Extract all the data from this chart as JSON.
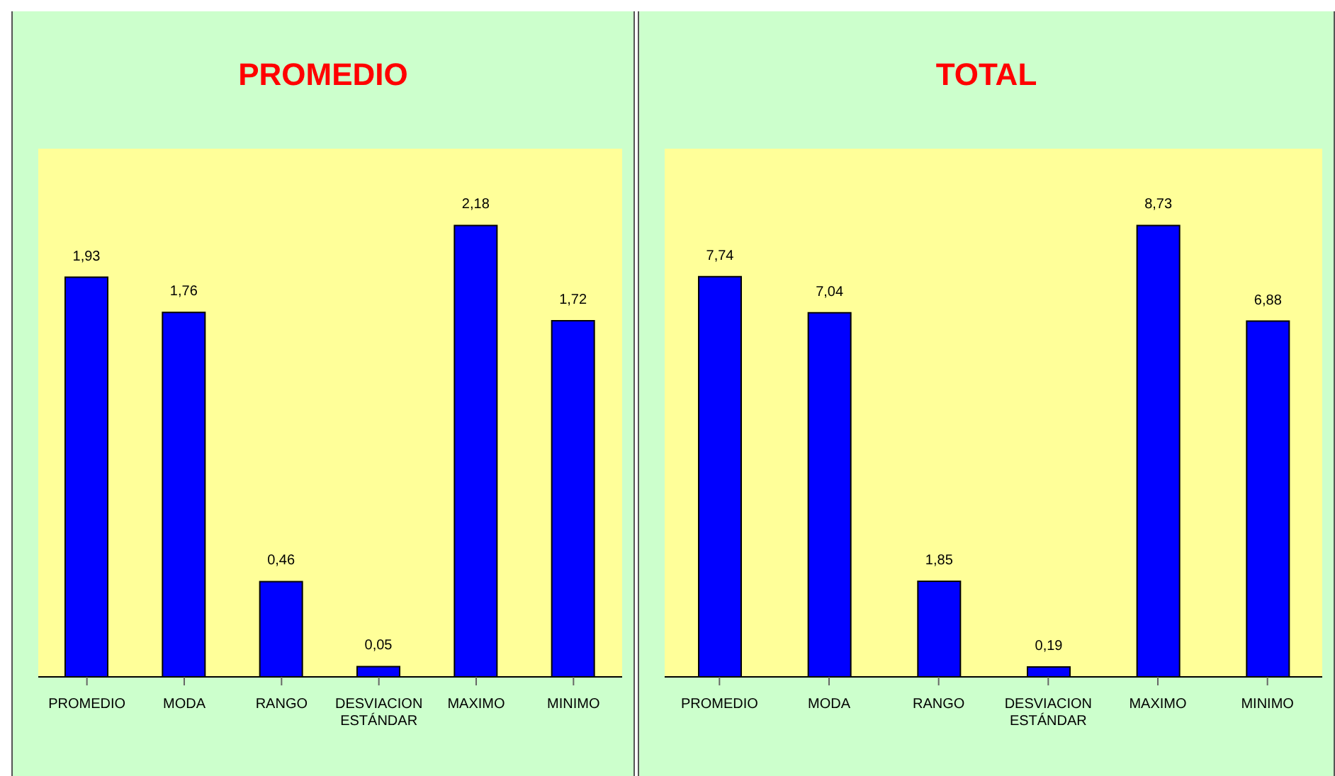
{
  "chart_data": [
    {
      "type": "bar",
      "title": "PROMEDIO",
      "categories": [
        "PROMEDIO",
        "MODA",
        "RANGO",
        "DESVIACION ESTÁNDAR",
        "MAXIMO",
        "MINIMO"
      ],
      "values": [
        1.93,
        1.76,
        0.46,
        0.05,
        2.18,
        1.72
      ],
      "value_labels": [
        "1,93",
        "1,76",
        "0,46",
        "0,05",
        "2,18",
        "1,72"
      ],
      "color": "#0000ff"
    },
    {
      "type": "bar",
      "title": "TOTAL",
      "categories": [
        "PROMEDIO",
        "MODA",
        "RANGO",
        "DESVIACION ESTÁNDAR",
        "MAXIMO",
        "MINIMO"
      ],
      "values": [
        7.74,
        7.04,
        1.85,
        0.19,
        8.73,
        6.88
      ],
      "value_labels": [
        "7,74",
        "7,04",
        "1,85",
        "0,19",
        "8,73",
        "6,88"
      ],
      "color": "#0000ff"
    }
  ]
}
